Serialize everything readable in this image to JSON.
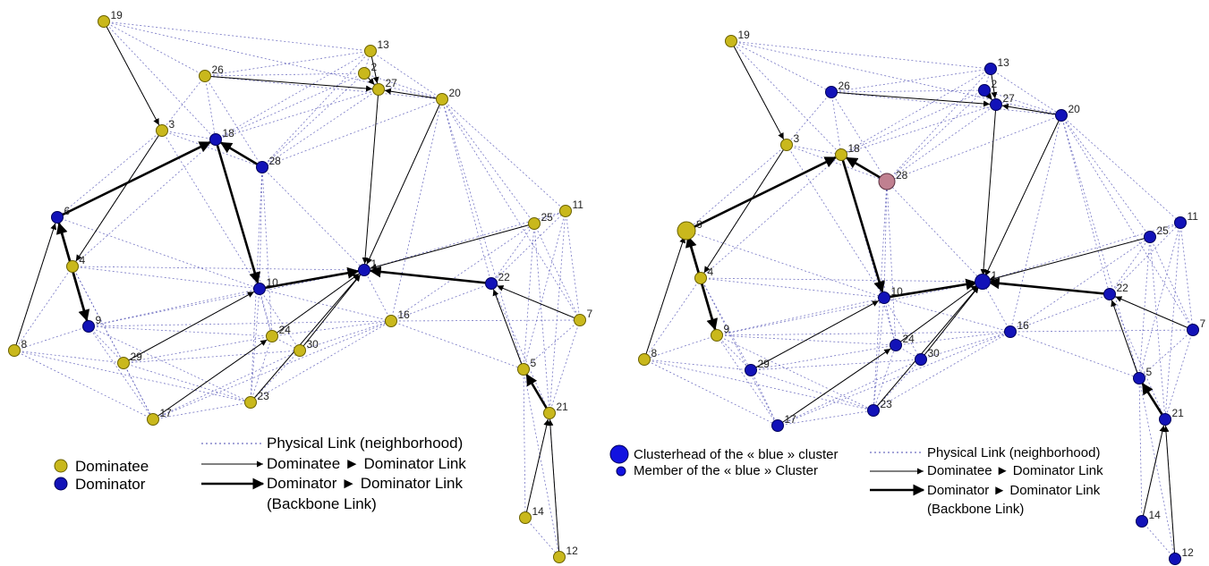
{
  "colors": {
    "dominatee": "#c9b81c",
    "dominator": "#1212b8",
    "special": "#c08090",
    "physical_link": "#4848b0",
    "directed_link": "#000000"
  },
  "left": {
    "nodes": [
      {
        "id": "19",
        "role": "dominatee"
      },
      {
        "id": "26",
        "role": "dominatee"
      },
      {
        "id": "13",
        "role": "dominatee"
      },
      {
        "id": "2",
        "role": "dominatee"
      },
      {
        "id": "27",
        "role": "dominatee"
      },
      {
        "id": "20",
        "role": "dominatee"
      },
      {
        "id": "3",
        "role": "dominatee"
      },
      {
        "id": "18",
        "role": "dominator"
      },
      {
        "id": "28",
        "role": "dominator"
      },
      {
        "id": "6",
        "role": "dominator"
      },
      {
        "id": "4",
        "role": "dominatee"
      },
      {
        "id": "10",
        "role": "dominator"
      },
      {
        "id": "1",
        "role": "dominator"
      },
      {
        "id": "9",
        "role": "dominator"
      },
      {
        "id": "8",
        "role": "dominatee"
      },
      {
        "id": "29",
        "role": "dominatee"
      },
      {
        "id": "17",
        "role": "dominatee"
      },
      {
        "id": "23",
        "role": "dominatee"
      },
      {
        "id": "24",
        "role": "dominatee"
      },
      {
        "id": "30",
        "role": "dominatee"
      },
      {
        "id": "16",
        "role": "dominatee"
      },
      {
        "id": "22",
        "role": "dominator"
      },
      {
        "id": "25",
        "role": "dominatee"
      },
      {
        "id": "11",
        "role": "dominatee"
      },
      {
        "id": "7",
        "role": "dominatee"
      },
      {
        "id": "5",
        "role": "dominatee"
      },
      {
        "id": "21",
        "role": "dominatee"
      },
      {
        "id": "14",
        "role": "dominatee"
      },
      {
        "id": "12",
        "role": "dominatee"
      }
    ],
    "legend": {
      "dominatee": "Dominatee",
      "dominator": "Dominator",
      "physical_link": "Physical Link (neighborhood)",
      "dominatee_link": "Dominatee ► Dominator Link",
      "backbone_link": "Dominator  ► Dominator Link",
      "backbone_note": "(Backbone Link)"
    }
  },
  "right": {
    "nodes": [
      {
        "id": "19",
        "role": "dominatee"
      },
      {
        "id": "26",
        "role": "member"
      },
      {
        "id": "13",
        "role": "member"
      },
      {
        "id": "2",
        "role": "member"
      },
      {
        "id": "27",
        "role": "member"
      },
      {
        "id": "20",
        "role": "member"
      },
      {
        "id": "3",
        "role": "dominatee"
      },
      {
        "id": "18",
        "role": "dominatee"
      },
      {
        "id": "28",
        "role": "special"
      },
      {
        "id": "6",
        "role": "clusterhead-yellow"
      },
      {
        "id": "4",
        "role": "dominatee"
      },
      {
        "id": "10",
        "role": "member"
      },
      {
        "id": "1",
        "role": "clusterhead"
      },
      {
        "id": "9",
        "role": "dominatee"
      },
      {
        "id": "8",
        "role": "dominatee"
      },
      {
        "id": "29",
        "role": "member"
      },
      {
        "id": "17",
        "role": "member"
      },
      {
        "id": "23",
        "role": "member"
      },
      {
        "id": "24",
        "role": "member"
      },
      {
        "id": "30",
        "role": "member"
      },
      {
        "id": "16",
        "role": "member"
      },
      {
        "id": "22",
        "role": "member"
      },
      {
        "id": "25",
        "role": "member"
      },
      {
        "id": "11",
        "role": "member"
      },
      {
        "id": "7",
        "role": "member"
      },
      {
        "id": "5",
        "role": "member"
      },
      {
        "id": "21",
        "role": "member"
      },
      {
        "id": "14",
        "role": "member"
      },
      {
        "id": "12",
        "role": "member"
      }
    ],
    "legend": {
      "clusterhead": "Clusterhead of the « blue » cluster",
      "member": "Member of the « blue » Cluster",
      "physical_link": "Physical Link (neighborhood)",
      "dominatee_link": "Dominatee ► Dominator Link",
      "backbone_link": "Dominator  ► Dominator Link",
      "backbone_note": "(Backbone Link)"
    }
  },
  "edges": {
    "physical": [
      [
        "19",
        "26"
      ],
      [
        "19",
        "13"
      ],
      [
        "19",
        "3"
      ],
      [
        "19",
        "18"
      ],
      [
        "19",
        "20"
      ],
      [
        "26",
        "13"
      ],
      [
        "26",
        "2"
      ],
      [
        "26",
        "18"
      ],
      [
        "26",
        "28"
      ],
      [
        "26",
        "20"
      ],
      [
        "26",
        "3"
      ],
      [
        "13",
        "2"
      ],
      [
        "13",
        "27"
      ],
      [
        "13",
        "20"
      ],
      [
        "13",
        "28"
      ],
      [
        "13",
        "18"
      ],
      [
        "2",
        "27"
      ],
      [
        "2",
        "20"
      ],
      [
        "2",
        "28"
      ],
      [
        "2",
        "18"
      ],
      [
        "27",
        "20"
      ],
      [
        "27",
        "28"
      ],
      [
        "27",
        "18"
      ],
      [
        "20",
        "28"
      ],
      [
        "20",
        "25"
      ],
      [
        "20",
        "11"
      ],
      [
        "20",
        "22"
      ],
      [
        "20",
        "5"
      ],
      [
        "20",
        "7"
      ],
      [
        "20",
        "16"
      ],
      [
        "3",
        "18"
      ],
      [
        "3",
        "28"
      ],
      [
        "3",
        "6"
      ],
      [
        "3",
        "4"
      ],
      [
        "3",
        "10"
      ],
      [
        "18",
        "28"
      ],
      [
        "18",
        "6"
      ],
      [
        "18",
        "4"
      ],
      [
        "18",
        "10"
      ],
      [
        "18",
        "24"
      ],
      [
        "28",
        "10"
      ],
      [
        "28",
        "24"
      ],
      [
        "28",
        "23"
      ],
      [
        "28",
        "1"
      ],
      [
        "6",
        "4"
      ],
      [
        "6",
        "8"
      ],
      [
        "6",
        "9"
      ],
      [
        "6",
        "10"
      ],
      [
        "4",
        "9"
      ],
      [
        "4",
        "8"
      ],
      [
        "4",
        "10"
      ],
      [
        "4",
        "29"
      ],
      [
        "4",
        "1"
      ],
      [
        "4",
        "17"
      ],
      [
        "10",
        "9"
      ],
      [
        "10",
        "24"
      ],
      [
        "10",
        "30"
      ],
      [
        "10",
        "23"
      ],
      [
        "10",
        "1"
      ],
      [
        "10",
        "29"
      ],
      [
        "10",
        "16"
      ],
      [
        "9",
        "8"
      ],
      [
        "9",
        "29"
      ],
      [
        "9",
        "17"
      ],
      [
        "9",
        "24"
      ],
      [
        "9",
        "23"
      ],
      [
        "9",
        "16"
      ],
      [
        "9",
        "1"
      ],
      [
        "8",
        "29"
      ],
      [
        "8",
        "17"
      ],
      [
        "8",
        "23"
      ],
      [
        "29",
        "17"
      ],
      [
        "29",
        "23"
      ],
      [
        "29",
        "24"
      ],
      [
        "29",
        "30"
      ],
      [
        "17",
        "23"
      ],
      [
        "17",
        "24"
      ],
      [
        "17",
        "16"
      ],
      [
        "17",
        "30"
      ],
      [
        "23",
        "24"
      ],
      [
        "23",
        "30"
      ],
      [
        "23",
        "1"
      ],
      [
        "23",
        "16"
      ],
      [
        "24",
        "30"
      ],
      [
        "24",
        "16"
      ],
      [
        "24",
        "1"
      ],
      [
        "30",
        "16"
      ],
      [
        "30",
        "1"
      ],
      [
        "16",
        "1"
      ],
      [
        "16",
        "22"
      ],
      [
        "16",
        "25"
      ],
      [
        "16",
        "7"
      ],
      [
        "16",
        "5"
      ],
      [
        "1",
        "25"
      ],
      [
        "1",
        "22"
      ],
      [
        "1",
        "20"
      ],
      [
        "1",
        "11"
      ],
      [
        "22",
        "25"
      ],
      [
        "22",
        "11"
      ],
      [
        "22",
        "7"
      ],
      [
        "22",
        "5"
      ],
      [
        "22",
        "21"
      ],
      [
        "25",
        "11"
      ],
      [
        "25",
        "7"
      ],
      [
        "25",
        "5"
      ],
      [
        "25",
        "21"
      ],
      [
        "11",
        "7"
      ],
      [
        "11",
        "5"
      ],
      [
        "11",
        "21"
      ],
      [
        "7",
        "5"
      ],
      [
        "7",
        "21"
      ],
      [
        "5",
        "21"
      ],
      [
        "5",
        "14"
      ],
      [
        "5",
        "12"
      ],
      [
        "21",
        "14"
      ],
      [
        "21",
        "12"
      ],
      [
        "14",
        "12"
      ]
    ],
    "dominatee_to_dominator": [
      [
        "19",
        "3"
      ],
      [
        "26",
        "27"
      ],
      [
        "2",
        "27"
      ],
      [
        "20",
        "27"
      ],
      [
        "3",
        "4"
      ],
      [
        "8",
        "6"
      ],
      [
        "29",
        "10"
      ],
      [
        "17",
        "24"
      ],
      [
        "23",
        "1"
      ],
      [
        "30",
        "1"
      ],
      [
        "25",
        "1"
      ],
      [
        "7",
        "22"
      ],
      [
        "5",
        "22"
      ],
      [
        "14",
        "21"
      ],
      [
        "12",
        "21"
      ],
      [
        "13",
        "27"
      ],
      [
        "27",
        "1"
      ],
      [
        "20",
        "1"
      ],
      [
        "24",
        "1"
      ]
    ],
    "backbone": [
      [
        "6",
        "18"
      ],
      [
        "18",
        "10"
      ],
      [
        "28",
        "18"
      ],
      [
        "6",
        "9"
      ],
      [
        "9",
        "6"
      ],
      [
        "10",
        "1"
      ],
      [
        "22",
        "1"
      ],
      [
        "21",
        "5"
      ]
    ]
  }
}
